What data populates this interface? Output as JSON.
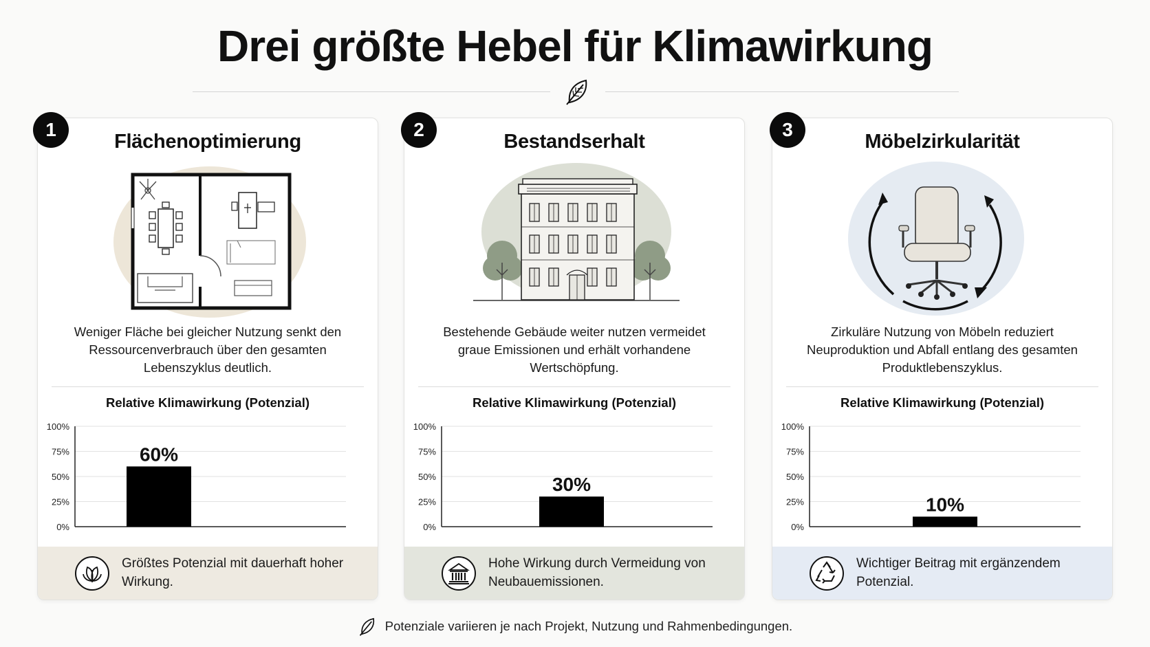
{
  "title": "Drei größte Hebel für Klimawirkung",
  "cards": [
    {
      "number": "1",
      "title": "Flächenoptimierung",
      "description": "Weniger Fläche bei gleicher Nutzung senkt den Ressourcenverbrauch über den gesamten Lebenszyklus deutlich.",
      "chart_title": "Relative Klimawirkung (Potenzial)",
      "footer": "Größtes Potenzial mit dauerhaft hoher Wirkung.",
      "footer_icon": "leaf-badge-icon",
      "footer_color": "#eeeae1"
    },
    {
      "number": "2",
      "title": "Bestandserhalt",
      "description": "Bestehende Gebäude weiter nutzen vermeidet graue Emissionen und erhält vorhandene Wertschöpfung.",
      "chart_title": "Relative Klimawirkung (Potenzial)",
      "footer": "Hohe Wirkung durch Vermeidung von Neubauemissionen.",
      "footer_icon": "building-columns-icon",
      "footer_color": "#e3e5dd"
    },
    {
      "number": "3",
      "title": "Möbelzirkularität",
      "description": "Zirkuläre Nutzung von Möbeln reduziert Neuproduktion und Abfall entlang des gesamten Produktlebenszyklus.",
      "chart_title": "Relative Klimawirkung (Potenzial)",
      "footer": "Wichtiger Beitrag mit ergänzendem Potenzial.",
      "footer_icon": "recycle-icon",
      "footer_color": "#e5ebf4"
    }
  ],
  "chart_data": [
    {
      "type": "bar",
      "title": "Relative Klimawirkung (Potenzial)",
      "categories": [
        "Flächenoptimierung"
      ],
      "values": [
        60
      ],
      "value_labels": [
        "60%"
      ],
      "yticks": [
        "0%",
        "25%",
        "50%",
        "75%",
        "100%"
      ],
      "ylim": [
        0,
        100
      ],
      "grid": true
    },
    {
      "type": "bar",
      "title": "Relative Klimawirkung (Potenzial)",
      "categories": [
        "Bestandserhalt"
      ],
      "values": [
        30
      ],
      "value_labels": [
        "30%"
      ],
      "yticks": [
        "0%",
        "25%",
        "50%",
        "75%",
        "100%"
      ],
      "ylim": [
        0,
        100
      ],
      "grid": true
    },
    {
      "type": "bar",
      "title": "Relative Klimawirkung (Potenzial)",
      "categories": [
        "Möbelzirkularität"
      ],
      "values": [
        10
      ],
      "value_labels": [
        "10%"
      ],
      "yticks": [
        "0%",
        "25%",
        "50%",
        "75%",
        "100%"
      ],
      "ylim": [
        0,
        100
      ],
      "grid": true
    }
  ],
  "note": "Potenziale variieren je nach Projekt, Nutzung und Rahmenbedingungen.",
  "colors": {
    "bar": "#000000",
    "badge": "#0b0b0b"
  }
}
